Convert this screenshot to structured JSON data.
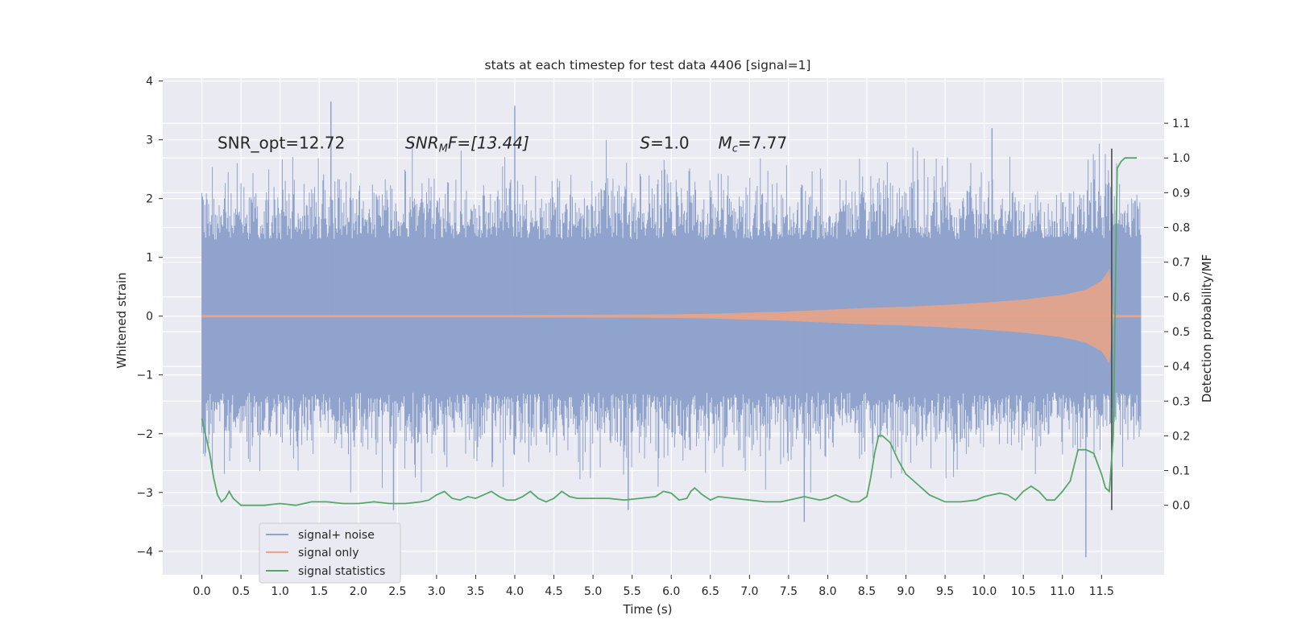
{
  "chart_data": {
    "type": "line",
    "title": "stats at each timestep for test data 4406 [signal=1]",
    "xlabel": "Time (s)",
    "ylabel": "Whitened strain",
    "ylabel_right": "Detection probability/MF",
    "xlim": [
      -0.5,
      12.3
    ],
    "ylim": [
      -4.4,
      4.05
    ],
    "ylim_right": [
      -0.2,
      1.23
    ],
    "x_ticks": [
      0.0,
      0.5,
      1.0,
      1.5,
      2.0,
      2.5,
      3.0,
      3.5,
      4.0,
      4.5,
      5.0,
      5.5,
      6.0,
      6.5,
      7.0,
      7.5,
      8.0,
      8.5,
      9.0,
      9.5,
      10.0,
      10.5,
      11.0,
      11.5
    ],
    "x_tick_labels": [
      "0.0",
      "0.5",
      "1.0",
      "1.5",
      "2.0",
      "2.5",
      "3.0",
      "3.5",
      "4.0",
      "4.5",
      "5.0",
      "5.5",
      "6.0",
      "6.5",
      "7.0",
      "7.5",
      "8.0",
      "8.5",
      "9.0",
      "9.5",
      "10.0",
      "10.5",
      "11.0",
      "11.5"
    ],
    "y_ticks": [
      -4,
      -3,
      -2,
      -1,
      0,
      1,
      2,
      3,
      4
    ],
    "y_tick_labels": [
      "−4",
      "−3",
      "−2",
      "−1",
      "0",
      "1",
      "2",
      "3",
      "4"
    ],
    "y_right_ticks": [
      0.0,
      0.1,
      0.2,
      0.3,
      0.4,
      0.5,
      0.6,
      0.7,
      0.8,
      0.9,
      1.0,
      1.1
    ],
    "y_right_tick_labels": [
      "0.0",
      "0.1",
      "0.2",
      "0.3",
      "0.4",
      "0.5",
      "0.6",
      "0.7",
      "0.8",
      "0.9",
      "1.0",
      "1.1"
    ],
    "grid": true,
    "legend_position": "lower-left",
    "annotations": [
      {
        "text": "SNR_opt=12.72",
        "x": 0.2,
        "y": 2.85
      },
      {
        "text": "SNR",
        "sub": "M",
        "tail": "F=[13.44]",
        "x": 2.6,
        "y": 2.85,
        "italic": true
      },
      {
        "text": "S",
        "tail": "=1.0",
        "x": 5.6,
        "y": 2.85,
        "italic": true
      },
      {
        "text": "M",
        "sub": "c",
        "tail": "=7.77",
        "x": 6.6,
        "y": 2.85,
        "italic": true
      }
    ],
    "series": [
      {
        "name": "signal+ noise",
        "color": "#8fa3cc",
        "kind": "noise_band",
        "t_range": [
          0.0,
          12.0
        ],
        "core_amplitude": 1.3,
        "peak_amplitude_range": [
          -4.1,
          3.7
        ],
        "notable_peaks": [
          [
            1.65,
            3.65
          ],
          [
            4.0,
            3.58
          ],
          [
            10.1,
            3.2
          ],
          [
            11.3,
            -4.1
          ],
          [
            7.7,
            -3.5
          ],
          [
            5.45,
            -3.3
          ],
          [
            2.45,
            -3.3
          ]
        ]
      },
      {
        "name": "signal only",
        "color": "#e8a488",
        "kind": "chirp_envelope",
        "x": [
          0.0,
          1.0,
          2.0,
          3.0,
          4.0,
          5.0,
          6.0,
          6.5,
          7.0,
          7.5,
          8.0,
          8.5,
          9.0,
          9.5,
          10.0,
          10.5,
          11.0,
          11.3,
          11.5,
          11.6,
          11.62,
          11.65,
          12.0
        ],
        "amplitude": [
          0.02,
          0.02,
          0.02,
          0.02,
          0.02,
          0.025,
          0.03,
          0.04,
          0.06,
          0.08,
          0.11,
          0.14,
          0.16,
          0.19,
          0.23,
          0.28,
          0.36,
          0.45,
          0.6,
          0.8,
          0.5,
          0.02,
          0.02
        ]
      },
      {
        "name": "signal statistics",
        "color": "#55a868",
        "axis": "right",
        "x": [
          0.0,
          0.05,
          0.1,
          0.15,
          0.2,
          0.25,
          0.3,
          0.35,
          0.4,
          0.5,
          0.6,
          0.8,
          1.0,
          1.2,
          1.4,
          1.6,
          1.8,
          2.0,
          2.2,
          2.4,
          2.6,
          2.8,
          2.9,
          3.0,
          3.1,
          3.2,
          3.3,
          3.4,
          3.5,
          3.6,
          3.7,
          3.8,
          3.9,
          4.0,
          4.1,
          4.2,
          4.3,
          4.4,
          4.5,
          4.6,
          4.7,
          4.8,
          4.9,
          5.0,
          5.2,
          5.4,
          5.6,
          5.8,
          5.9,
          6.0,
          6.1,
          6.2,
          6.25,
          6.3,
          6.4,
          6.5,
          6.6,
          6.8,
          7.0,
          7.2,
          7.4,
          7.6,
          7.7,
          7.8,
          7.9,
          8.0,
          8.1,
          8.2,
          8.3,
          8.4,
          8.5,
          8.55,
          8.6,
          8.65,
          8.7,
          8.8,
          8.9,
          9.0,
          9.1,
          9.3,
          9.5,
          9.7,
          9.9,
          10.0,
          10.1,
          10.2,
          10.3,
          10.4,
          10.5,
          10.6,
          10.7,
          10.8,
          10.9,
          11.0,
          11.1,
          11.2,
          11.3,
          11.4,
          11.5,
          11.55,
          11.6,
          11.65,
          11.7,
          11.75,
          11.8,
          11.85,
          11.9,
          11.95
        ],
        "values": [
          0.25,
          0.2,
          0.15,
          0.08,
          0.03,
          0.01,
          0.02,
          0.04,
          0.02,
          0.0,
          0.0,
          0.0,
          0.005,
          0.0,
          0.01,
          0.01,
          0.005,
          0.005,
          0.01,
          0.005,
          0.005,
          0.01,
          0.015,
          0.03,
          0.04,
          0.02,
          0.015,
          0.025,
          0.02,
          0.03,
          0.04,
          0.025,
          0.015,
          0.015,
          0.025,
          0.04,
          0.02,
          0.01,
          0.02,
          0.04,
          0.025,
          0.02,
          0.02,
          0.02,
          0.02,
          0.015,
          0.02,
          0.025,
          0.04,
          0.035,
          0.015,
          0.02,
          0.04,
          0.05,
          0.03,
          0.015,
          0.025,
          0.02,
          0.015,
          0.01,
          0.01,
          0.02,
          0.025,
          0.02,
          0.015,
          0.02,
          0.03,
          0.02,
          0.01,
          0.01,
          0.025,
          0.08,
          0.15,
          0.2,
          0.2,
          0.18,
          0.13,
          0.09,
          0.07,
          0.03,
          0.01,
          0.01,
          0.015,
          0.025,
          0.03,
          0.035,
          0.03,
          0.015,
          0.04,
          0.055,
          0.04,
          0.015,
          0.015,
          0.04,
          0.07,
          0.16,
          0.16,
          0.15,
          0.09,
          0.05,
          0.04,
          0.2,
          0.97,
          0.99,
          1.0,
          1.0,
          1.0,
          1.0
        ]
      }
    ],
    "vertical_marker": {
      "x": 11.63,
      "color": "#444444",
      "y_range": [
        -3.3,
        2.85
      ]
    }
  },
  "legend": {
    "items": [
      {
        "label": "signal+ noise",
        "color": "#8fa3cc"
      },
      {
        "label": "signal only",
        "color": "#e8a488"
      },
      {
        "label": "signal statistics",
        "color": "#55a868"
      }
    ]
  },
  "theme": {
    "plot_background": "#eaeaf2",
    "grid_color": "#ffffff",
    "text_color": "#262626"
  }
}
